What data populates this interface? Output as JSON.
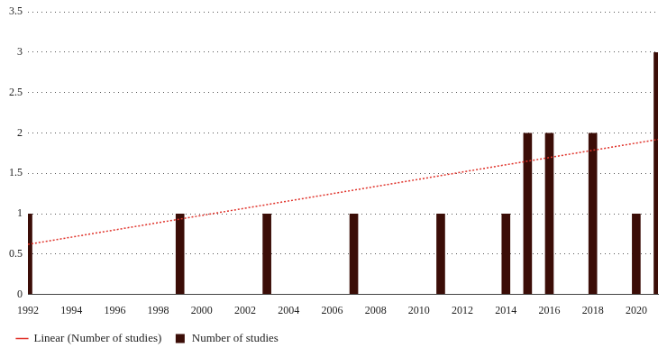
{
  "chart_data": {
    "type": "bar",
    "categories": [
      "1992",
      null,
      "1994",
      null,
      "1996",
      null,
      "1998",
      null,
      "2000",
      null,
      "2002",
      null,
      "2004",
      null,
      "2006",
      null,
      "2008",
      null,
      "2010",
      null,
      "2012",
      null,
      "2014",
      null,
      "2016",
      null,
      "2018",
      null,
      "2020",
      null
    ],
    "series": [
      {
        "name": "Number of studies",
        "color": "#3b0d07",
        "values": [
          1,
          0,
          0,
          0,
          0,
          0,
          0,
          1,
          0,
          0,
          0,
          1,
          0,
          0,
          0,
          1,
          0,
          0,
          0,
          1,
          0,
          0,
          1,
          2,
          2,
          0,
          2,
          0,
          1,
          3
        ]
      },
      {
        "name": "Linear (Number of studies)",
        "type": "line",
        "color": "#e0332b",
        "line_style": "dotted",
        "values": [
          0.62,
          null,
          null,
          null,
          null,
          null,
          null,
          null,
          null,
          null,
          null,
          null,
          null,
          null,
          null,
          null,
          null,
          null,
          null,
          null,
          null,
          null,
          null,
          null,
          null,
          null,
          null,
          null,
          null,
          1.92
        ]
      }
    ],
    "ylim": [
      0,
      3.5
    ],
    "yticks": [
      0,
      0.5,
      1,
      1.5,
      2,
      2.5,
      3,
      3.5
    ],
    "grid": true,
    "legend": "bottom"
  }
}
